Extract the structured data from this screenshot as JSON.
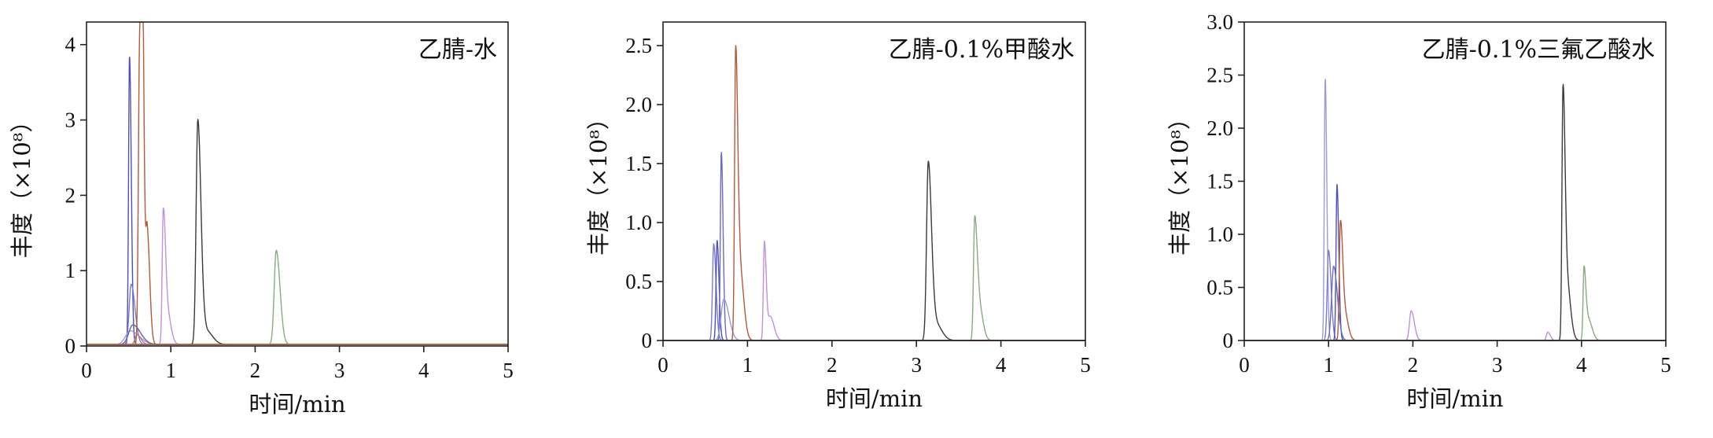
{
  "chart_data": [
    {
      "type": "line",
      "title": "乙腈-水",
      "xlabel": "时间/min",
      "ylabel": "丰度（×10⁸）",
      "xlim": [
        0,
        5
      ],
      "ylim": [
        0,
        4.3
      ],
      "xticks": [
        "0",
        "1",
        "2",
        "3",
        "4",
        "5"
      ],
      "yticks": [
        "0",
        "1",
        "2",
        "3",
        "4"
      ],
      "ytick_values": [
        0,
        1,
        2,
        3,
        4
      ],
      "baseline": 0.02,
      "series": [
        {
          "color": "#4f4fb8",
          "peaks": [
            [
              0.51,
              3.86,
              0.014
            ]
          ]
        },
        {
          "color": "#7b7bd0",
          "peaks": [
            [
              0.53,
              0.82,
              0.03
            ]
          ]
        },
        {
          "color": "#9a9ae0",
          "peaks": [
            [
              0.52,
              0.2,
              0.07
            ]
          ]
        },
        {
          "color": "#6060b0",
          "peaks": [
            [
              0.55,
              0.28,
              0.06
            ]
          ]
        },
        {
          "color": "#c97676",
          "peaks": [
            [
              0.6,
              0.15,
              0.03
            ]
          ]
        },
        {
          "color": "#b25a3a",
          "peaks": [
            [
              0.63,
              4.0,
              0.018
            ],
            [
              0.66,
              3.92,
              0.015
            ],
            [
              0.72,
              1.5,
              0.02
            ]
          ]
        },
        {
          "color": "#c090d8",
          "peaks": [
            [
              0.91,
              1.7,
              0.016
            ],
            [
              0.95,
              0.5,
              0.03
            ]
          ]
        },
        {
          "color": "#3a3a3a",
          "peaks": [
            [
              1.32,
              3.0,
              0.025
            ],
            [
              1.42,
              0.2,
              0.05
            ]
          ]
        },
        {
          "color": "#8aaa80",
          "peaks": [
            [
              2.25,
              1.27,
              0.03
            ]
          ]
        }
      ]
    },
    {
      "type": "line",
      "title": "乙腈-0.1%甲酸水",
      "xlabel": "时间/min",
      "ylabel": "丰度（×10⁸）",
      "xlim": [
        0,
        5
      ],
      "ylim": [
        0,
        2.7
      ],
      "xticks": [
        "0",
        "1",
        "2",
        "3",
        "4",
        "5"
      ],
      "yticks": [
        "0",
        "0.5",
        "1.0",
        "1.5",
        "2.0",
        "2.5"
      ],
      "ytick_values": [
        0,
        0.5,
        1.0,
        1.5,
        2.0,
        2.5
      ],
      "baseline": 0.0,
      "series": [
        {
          "color": "#7b7bd0",
          "peaks": [
            [
              0.6,
              0.82,
              0.018
            ]
          ]
        },
        {
          "color": "#4f4fb8",
          "peaks": [
            [
              0.64,
              0.85,
              0.015
            ]
          ]
        },
        {
          "color": "#6a6ac8",
          "peaks": [
            [
              0.69,
              1.6,
              0.014
            ]
          ]
        },
        {
          "color": "#9a9ae0",
          "peaks": [
            [
              0.72,
              0.35,
              0.04
            ]
          ]
        },
        {
          "color": "#b25a3a",
          "peaks": [
            [
              0.86,
              2.43,
              0.016
            ],
            [
              0.91,
              0.6,
              0.03
            ]
          ]
        },
        {
          "color": "#c090d8",
          "peaks": [
            [
              1.2,
              0.84,
              0.015
            ],
            [
              1.27,
              0.2,
              0.03
            ]
          ]
        },
        {
          "color": "#3a3a3a",
          "peaks": [
            [
              3.14,
              1.5,
              0.025
            ],
            [
              3.22,
              0.15,
              0.05
            ]
          ]
        },
        {
          "color": "#8aaa80",
          "peaks": [
            [
              3.69,
              1.02,
              0.018
            ],
            [
              3.74,
              0.3,
              0.03
            ]
          ]
        }
      ]
    },
    {
      "type": "line",
      "title": "乙腈-0.1%三氟乙酸水",
      "xlabel": "时间/min",
      "ylabel": "丰度（×10⁸）",
      "xlim": [
        0,
        5
      ],
      "ylim": [
        0,
        3.0
      ],
      "xticks": [
        "0",
        "1",
        "2",
        "3",
        "4",
        "5"
      ],
      "yticks": [
        "0",
        "0.5",
        "1.0",
        "1.5",
        "2.0",
        "2.5",
        "3.0"
      ],
      "ytick_values": [
        0,
        0.5,
        1.0,
        1.5,
        2.0,
        2.5,
        3.0
      ],
      "baseline": 0.0,
      "series": [
        {
          "color": "#9a9ae0",
          "peaks": [
            [
              0.96,
              2.48,
              0.013
            ]
          ]
        },
        {
          "color": "#7b7bd0",
          "peaks": [
            [
              1.0,
              0.85,
              0.02
            ]
          ]
        },
        {
          "color": "#4f4fb8",
          "peaks": [
            [
              1.1,
              1.47,
              0.014
            ]
          ]
        },
        {
          "color": "#6a6ac8",
          "peaks": [
            [
              1.06,
              0.7,
              0.03
            ]
          ]
        },
        {
          "color": "#b25a3a",
          "peaks": [
            [
              1.14,
              1.05,
              0.016
            ],
            [
              1.18,
              0.3,
              0.03
            ]
          ]
        },
        {
          "color": "#c090d8",
          "peaks": [
            [
              1.98,
              0.28,
              0.025
            ],
            [
              3.6,
              0.08,
              0.02
            ]
          ]
        },
        {
          "color": "#3a3a3a",
          "peaks": [
            [
              3.78,
              2.25,
              0.015
            ],
            [
              3.82,
              0.6,
              0.03
            ]
          ]
        },
        {
          "color": "#8aaa80",
          "peaks": [
            [
              4.03,
              0.68,
              0.014
            ],
            [
              4.08,
              0.2,
              0.03
            ]
          ]
        }
      ]
    }
  ]
}
